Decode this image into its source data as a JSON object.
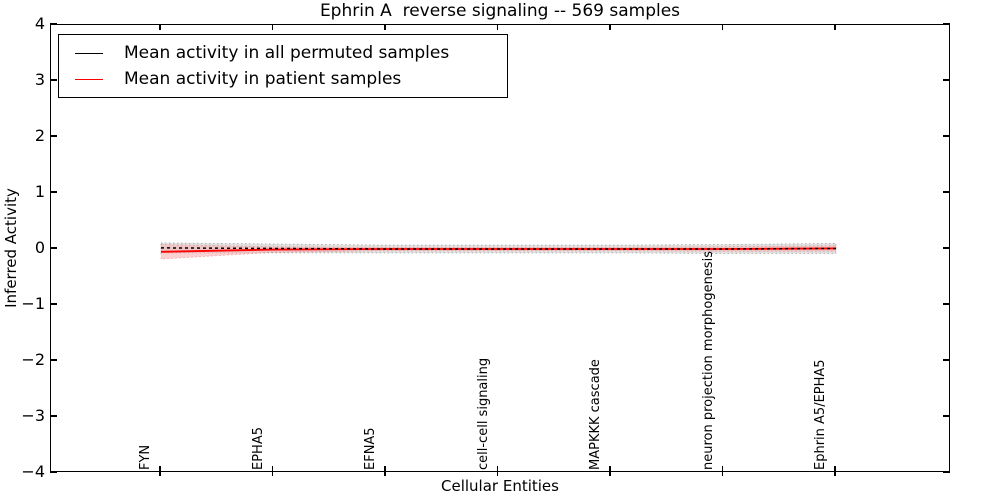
{
  "title": "Ephrin A  reverse signaling -- 569 samples",
  "axes": {
    "ylabel": "Inferred Activity",
    "xlabel": "Cellular Entities"
  },
  "legend": {
    "position": "upper left",
    "items": [
      {
        "label": "Mean activity in all permuted samples",
        "color": "#000000"
      },
      {
        "label": "Mean activity in patient samples",
        "color": "#ff0000"
      }
    ]
  },
  "chart_data": {
    "type": "line",
    "title": "Ephrin A  reverse signaling -- 569 samples",
    "xlabel": "Cellular Entities",
    "ylabel": "Inferred Activity",
    "ylim": [
      -4,
      4
    ],
    "yticks": [
      4,
      3,
      2,
      1,
      0,
      -1,
      -2,
      -3,
      -4
    ],
    "ytick_labels": [
      "4",
      "3",
      "2",
      "1",
      "0",
      "−1",
      "−2",
      "−3",
      "−4"
    ],
    "categories": [
      "FYN",
      "EPHA5",
      "EFNA5",
      "cell-cell signaling",
      "MAPKKK cascade",
      "neuron projection morphogenesis",
      "Ephrin A5/EPHA5"
    ],
    "grid": false,
    "legend_position": "upper left",
    "series": [
      {
        "name": "Mean activity in all permuted samples",
        "color": "#000000",
        "line_style": "dashed",
        "values": [
          0.02,
          0.01,
          0.0,
          0.0,
          0.0,
          0.0,
          0.01
        ],
        "band": [
          0.09,
          0.08,
          0.07,
          0.07,
          0.07,
          0.08,
          0.09
        ],
        "band_color": "#cccccc"
      },
      {
        "name": "Mean activity in patient samples",
        "color": "#ff0000",
        "line_style": "solid",
        "values": [
          -0.05,
          -0.01,
          0.0,
          0.0,
          0.0,
          0.0,
          0.01
        ],
        "band": [
          0.13,
          0.05,
          0.03,
          0.03,
          0.03,
          0.04,
          0.05
        ],
        "band_color": "#f6b0b0"
      }
    ]
  }
}
